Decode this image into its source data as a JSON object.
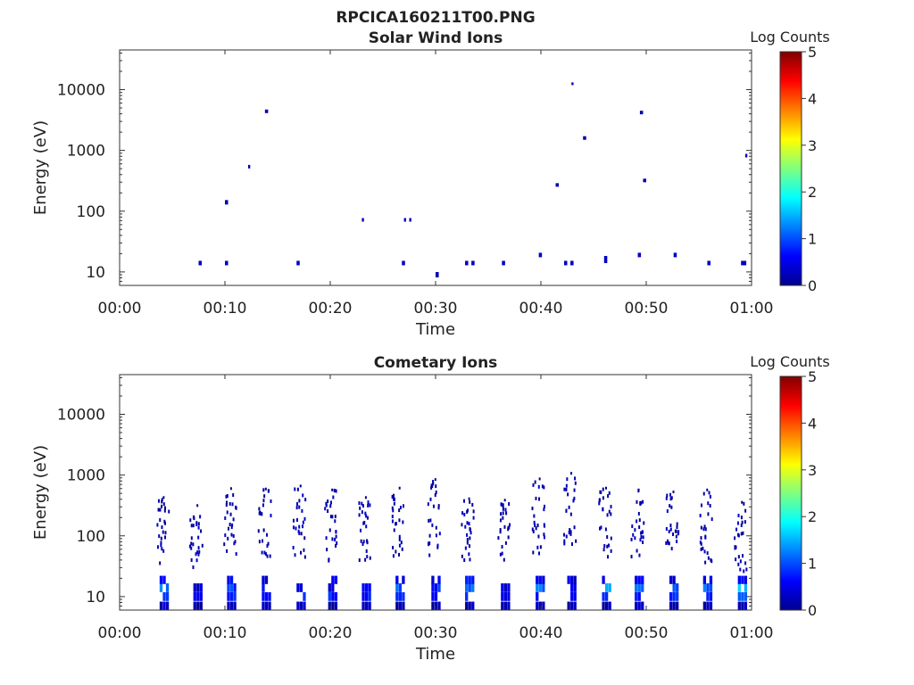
{
  "page_title": "RPCICA160211T00.PNG",
  "chart_data": [
    {
      "type": "heatmap",
      "title": "Solar Wind Ions",
      "xlabel": "Time",
      "ylabel": "Energy (eV)",
      "yscale": "log",
      "ylim": [
        6,
        45000
      ],
      "xlim": [
        "00:00",
        "01:00"
      ],
      "xticks": [
        "00:00",
        "00:10",
        "00:20",
        "00:30",
        "00:40",
        "00:50",
        "01:00"
      ],
      "yticks": [
        "10",
        "100",
        "1000",
        "10000"
      ],
      "colorbar": {
        "label": "Log Counts",
        "min": 0,
        "max": 5,
        "ticks": [
          "0",
          "1",
          "2",
          "3",
          "4",
          "5"
        ]
      },
      "grid": false,
      "cells": [
        [
          7.5,
          14,
          0.3,
          5,
          0.3
        ],
        [
          10.0,
          14,
          0.3,
          5,
          0.3
        ],
        [
          16.8,
          14,
          0.3,
          5,
          0.3
        ],
        [
          26.8,
          14,
          0.3,
          5,
          0.3
        ],
        [
          30.0,
          9,
          0.3,
          6,
          0.2
        ],
        [
          32.8,
          14,
          0.3,
          5,
          0.3
        ],
        [
          33.4,
          14,
          0.3,
          5,
          0.3
        ],
        [
          36.3,
          14,
          0.3,
          5,
          0.3
        ],
        [
          39.8,
          19,
          0.3,
          5,
          0.3
        ],
        [
          42.2,
          14,
          0.3,
          5,
          0.3
        ],
        [
          42.8,
          14,
          0.3,
          5,
          0.3
        ],
        [
          46.0,
          16,
          0.3,
          8,
          0.3
        ],
        [
          49.2,
          19,
          0.3,
          5,
          0.3
        ],
        [
          52.6,
          19,
          0.3,
          5,
          0.3
        ],
        [
          55.8,
          14,
          0.3,
          5,
          0.3
        ],
        [
          59.0,
          14,
          0.5,
          5,
          0.3
        ],
        [
          10.0,
          140,
          0.3,
          5,
          0.2
        ],
        [
          12.2,
          540,
          0.2,
          4,
          0.2
        ],
        [
          13.8,
          4400,
          0.3,
          4,
          0.2
        ],
        [
          23.0,
          72,
          0.2,
          4,
          0.2
        ],
        [
          27.0,
          72,
          0.2,
          4,
          0.2
        ],
        [
          27.5,
          72,
          0.2,
          4,
          0.2
        ],
        [
          41.4,
          270,
          0.3,
          4,
          0.2
        ],
        [
          42.9,
          12500,
          0.2,
          3,
          0.2
        ],
        [
          44.0,
          1600,
          0.3,
          4,
          0.2
        ],
        [
          49.4,
          4200,
          0.3,
          4,
          0.2
        ],
        [
          49.7,
          320,
          0.3,
          4,
          0.2
        ],
        [
          59.4,
          820,
          0.2,
          4,
          0.2
        ]
      ]
    },
    {
      "type": "heatmap",
      "title": "Cometary Ions",
      "xlabel": "Time",
      "ylabel": "Energy (eV)",
      "yscale": "log",
      "ylim": [
        6,
        45000
      ],
      "xlim": [
        "00:00",
        "01:00"
      ],
      "xticks": [
        "00:00",
        "00:10",
        "00:20",
        "00:30",
        "00:40",
        "00:50",
        "01:00"
      ],
      "yticks": [
        "10",
        "100",
        "1000",
        "10000"
      ],
      "colorbar": {
        "label": "Log Counts",
        "min": 0,
        "max": 5,
        "ticks": [
          "0",
          "1",
          "2",
          "3",
          "4",
          "5"
        ]
      },
      "grid": false,
      "columns": [
        {
          "t": 3.8,
          "low_counts": [
            0.0,
            0.6,
            1.0,
            0.3
          ],
          "upper_top": 420,
          "upper_bottom": 35
        },
        {
          "t": 7.0,
          "low_counts": [
            0.0,
            0.4,
            0.2
          ],
          "upper_top": 310,
          "upper_bottom": 30
        },
        {
          "t": 10.2,
          "low_counts": [
            0.0,
            0.5,
            0.7,
            0.3
          ],
          "upper_top": 590,
          "upper_bottom": 45
        },
        {
          "t": 13.5,
          "low_counts": [
            0.0,
            0.4,
            0.6,
            0.2
          ],
          "upper_top": 580,
          "upper_bottom": 40
        },
        {
          "t": 16.8,
          "low_counts": [
            0.0,
            0.5,
            0.3
          ],
          "upper_top": 650,
          "upper_bottom": 40
        },
        {
          "t": 19.8,
          "low_counts": [
            0.0,
            0.6,
            0.3,
            0.2
          ],
          "upper_top": 560,
          "upper_bottom": 38
        },
        {
          "t": 23.0,
          "low_counts": [
            0.0,
            0.5,
            0.4
          ],
          "upper_top": 420,
          "upper_bottom": 32
        },
        {
          "t": 26.2,
          "low_counts": [
            0.0,
            0.5,
            0.9,
            0.3
          ],
          "upper_top": 600,
          "upper_bottom": 45
        },
        {
          "t": 29.6,
          "low_counts": [
            0.0,
            0.4,
            0.6,
            0.3
          ],
          "upper_top": 830,
          "upper_bottom": 45
        },
        {
          "t": 32.8,
          "low_counts": [
            0.0,
            0.5,
            0.9,
            0.4
          ],
          "upper_top": 400,
          "upper_bottom": 35
        },
        {
          "t": 36.2,
          "low_counts": [
            0.0,
            0.4,
            0.2
          ],
          "upper_top": 380,
          "upper_bottom": 40
        },
        {
          "t": 39.5,
          "low_counts": [
            0.0,
            0.5,
            1.0,
            0.3
          ],
          "upper_top": 850,
          "upper_bottom": 45
        },
        {
          "t": 42.5,
          "low_counts": [
            0.0,
            0.3,
            0.5,
            0.2
          ],
          "upper_top": 1050,
          "upper_bottom": 70
        },
        {
          "t": 45.8,
          "low_counts": [
            0.0,
            0.5,
            1.1,
            0.3
          ],
          "upper_top": 600,
          "upper_bottom": 45
        },
        {
          "t": 48.9,
          "low_counts": [
            0.0,
            0.6,
            0.9,
            0.3
          ],
          "upper_top": 560,
          "upper_bottom": 45
        },
        {
          "t": 52.2,
          "low_counts": [
            0.0,
            0.5,
            0.9,
            0.2
          ],
          "upper_top": 520,
          "upper_bottom": 60
        },
        {
          "t": 55.4,
          "low_counts": [
            0.0,
            0.4,
            0.9,
            0.3
          ],
          "upper_top": 560,
          "upper_bottom": 36
        },
        {
          "t": 58.7,
          "low_counts": [
            0.0,
            0.7,
            1.3,
            0.4
          ],
          "upper_top": 350,
          "upper_bottom": 25
        }
      ]
    }
  ]
}
